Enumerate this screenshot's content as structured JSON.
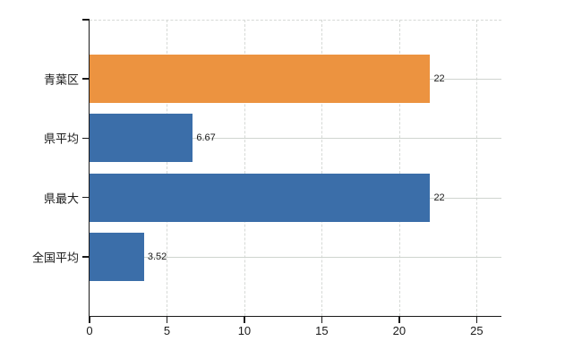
{
  "chart_data": {
    "type": "bar",
    "orientation": "horizontal",
    "categories": [
      "青葉区",
      "県平均",
      "県最大",
      "全国平均"
    ],
    "values": [
      22,
      6.67,
      22,
      3.52
    ],
    "value_labels": [
      "22",
      "6.67",
      "22",
      "3.52"
    ],
    "series": [
      {
        "name": "青葉区",
        "value": 22,
        "color": "#ec9340"
      },
      {
        "name": "県平均",
        "value": 6.67,
        "color": "#3b6ea9"
      },
      {
        "name": "県最大",
        "value": 22,
        "color": "#3b6ea9"
      },
      {
        "name": "全国平均",
        "value": 3.52,
        "color": "#3b6ea9"
      }
    ],
    "bar_colors": [
      "#ec9340",
      "#3b6ea9",
      "#3b6ea9",
      "#3b6ea9"
    ],
    "x_ticks": [
      "0",
      "5",
      "10",
      "15",
      "20",
      "25"
    ],
    "x_tick_values": [
      0,
      5,
      10,
      15,
      20,
      25
    ],
    "xlim": [
      0,
      26.6
    ],
    "xlabel": "",
    "ylabel": "",
    "grid": true,
    "legend": "none"
  },
  "colors": {
    "highlight_bar": "#ec9340",
    "default_bar": "#3b6ea9",
    "gridline": "#d6d9d6",
    "axis": "#1a1a1a",
    "background": "#ffffff"
  }
}
